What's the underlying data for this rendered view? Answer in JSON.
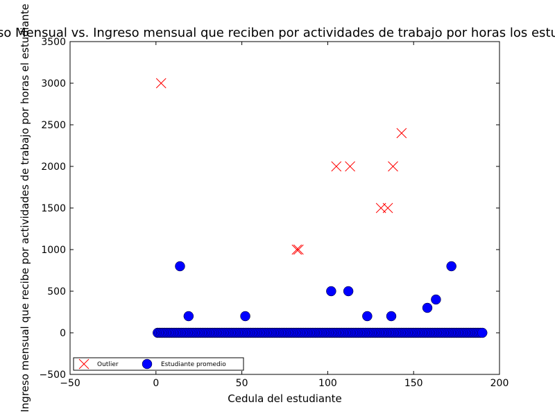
{
  "chart_data": {
    "type": "scatter",
    "title": "Ingreso Mensual vs. Ingreso mensual que reciben por actividades de trabajo por horas los estudiantes",
    "xlabel": "Cedula del estudiante",
    "ylabel": "Ingreso mensual que recibe por actividades de trabajo por horas  el estudiante",
    "xlim": [
      -50,
      200
    ],
    "ylim": [
      -500,
      3500
    ],
    "xticks": [
      "−50",
      "0",
      "50",
      "100",
      "150",
      "200"
    ],
    "yticks": [
      "−500",
      "0",
      "500",
      "1000",
      "1500",
      "2000",
      "2500",
      "3000",
      "3500"
    ],
    "grid": false,
    "legend_position": "bottom-left",
    "series": [
      {
        "name": "Outlier",
        "marker": "x",
        "color": "#ff0000",
        "x": [
          3,
          82,
          83,
          105,
          113,
          131,
          135,
          138,
          143
        ],
        "y": [
          3000,
          1000,
          1000,
          2000,
          2000,
          1500,
          1500,
          2000,
          2400
        ]
      },
      {
        "name": "Estudiante promedio",
        "marker": "o",
        "color": "#0000ff",
        "x": [
          14,
          19,
          52,
          102,
          112,
          123,
          137,
          158,
          163,
          172
        ],
        "y": [
          800,
          200,
          200,
          500,
          500,
          200,
          200,
          300,
          400,
          800
        ],
        "zero_x": [
          1,
          190
        ],
        "zero_y": 0
      }
    ]
  }
}
